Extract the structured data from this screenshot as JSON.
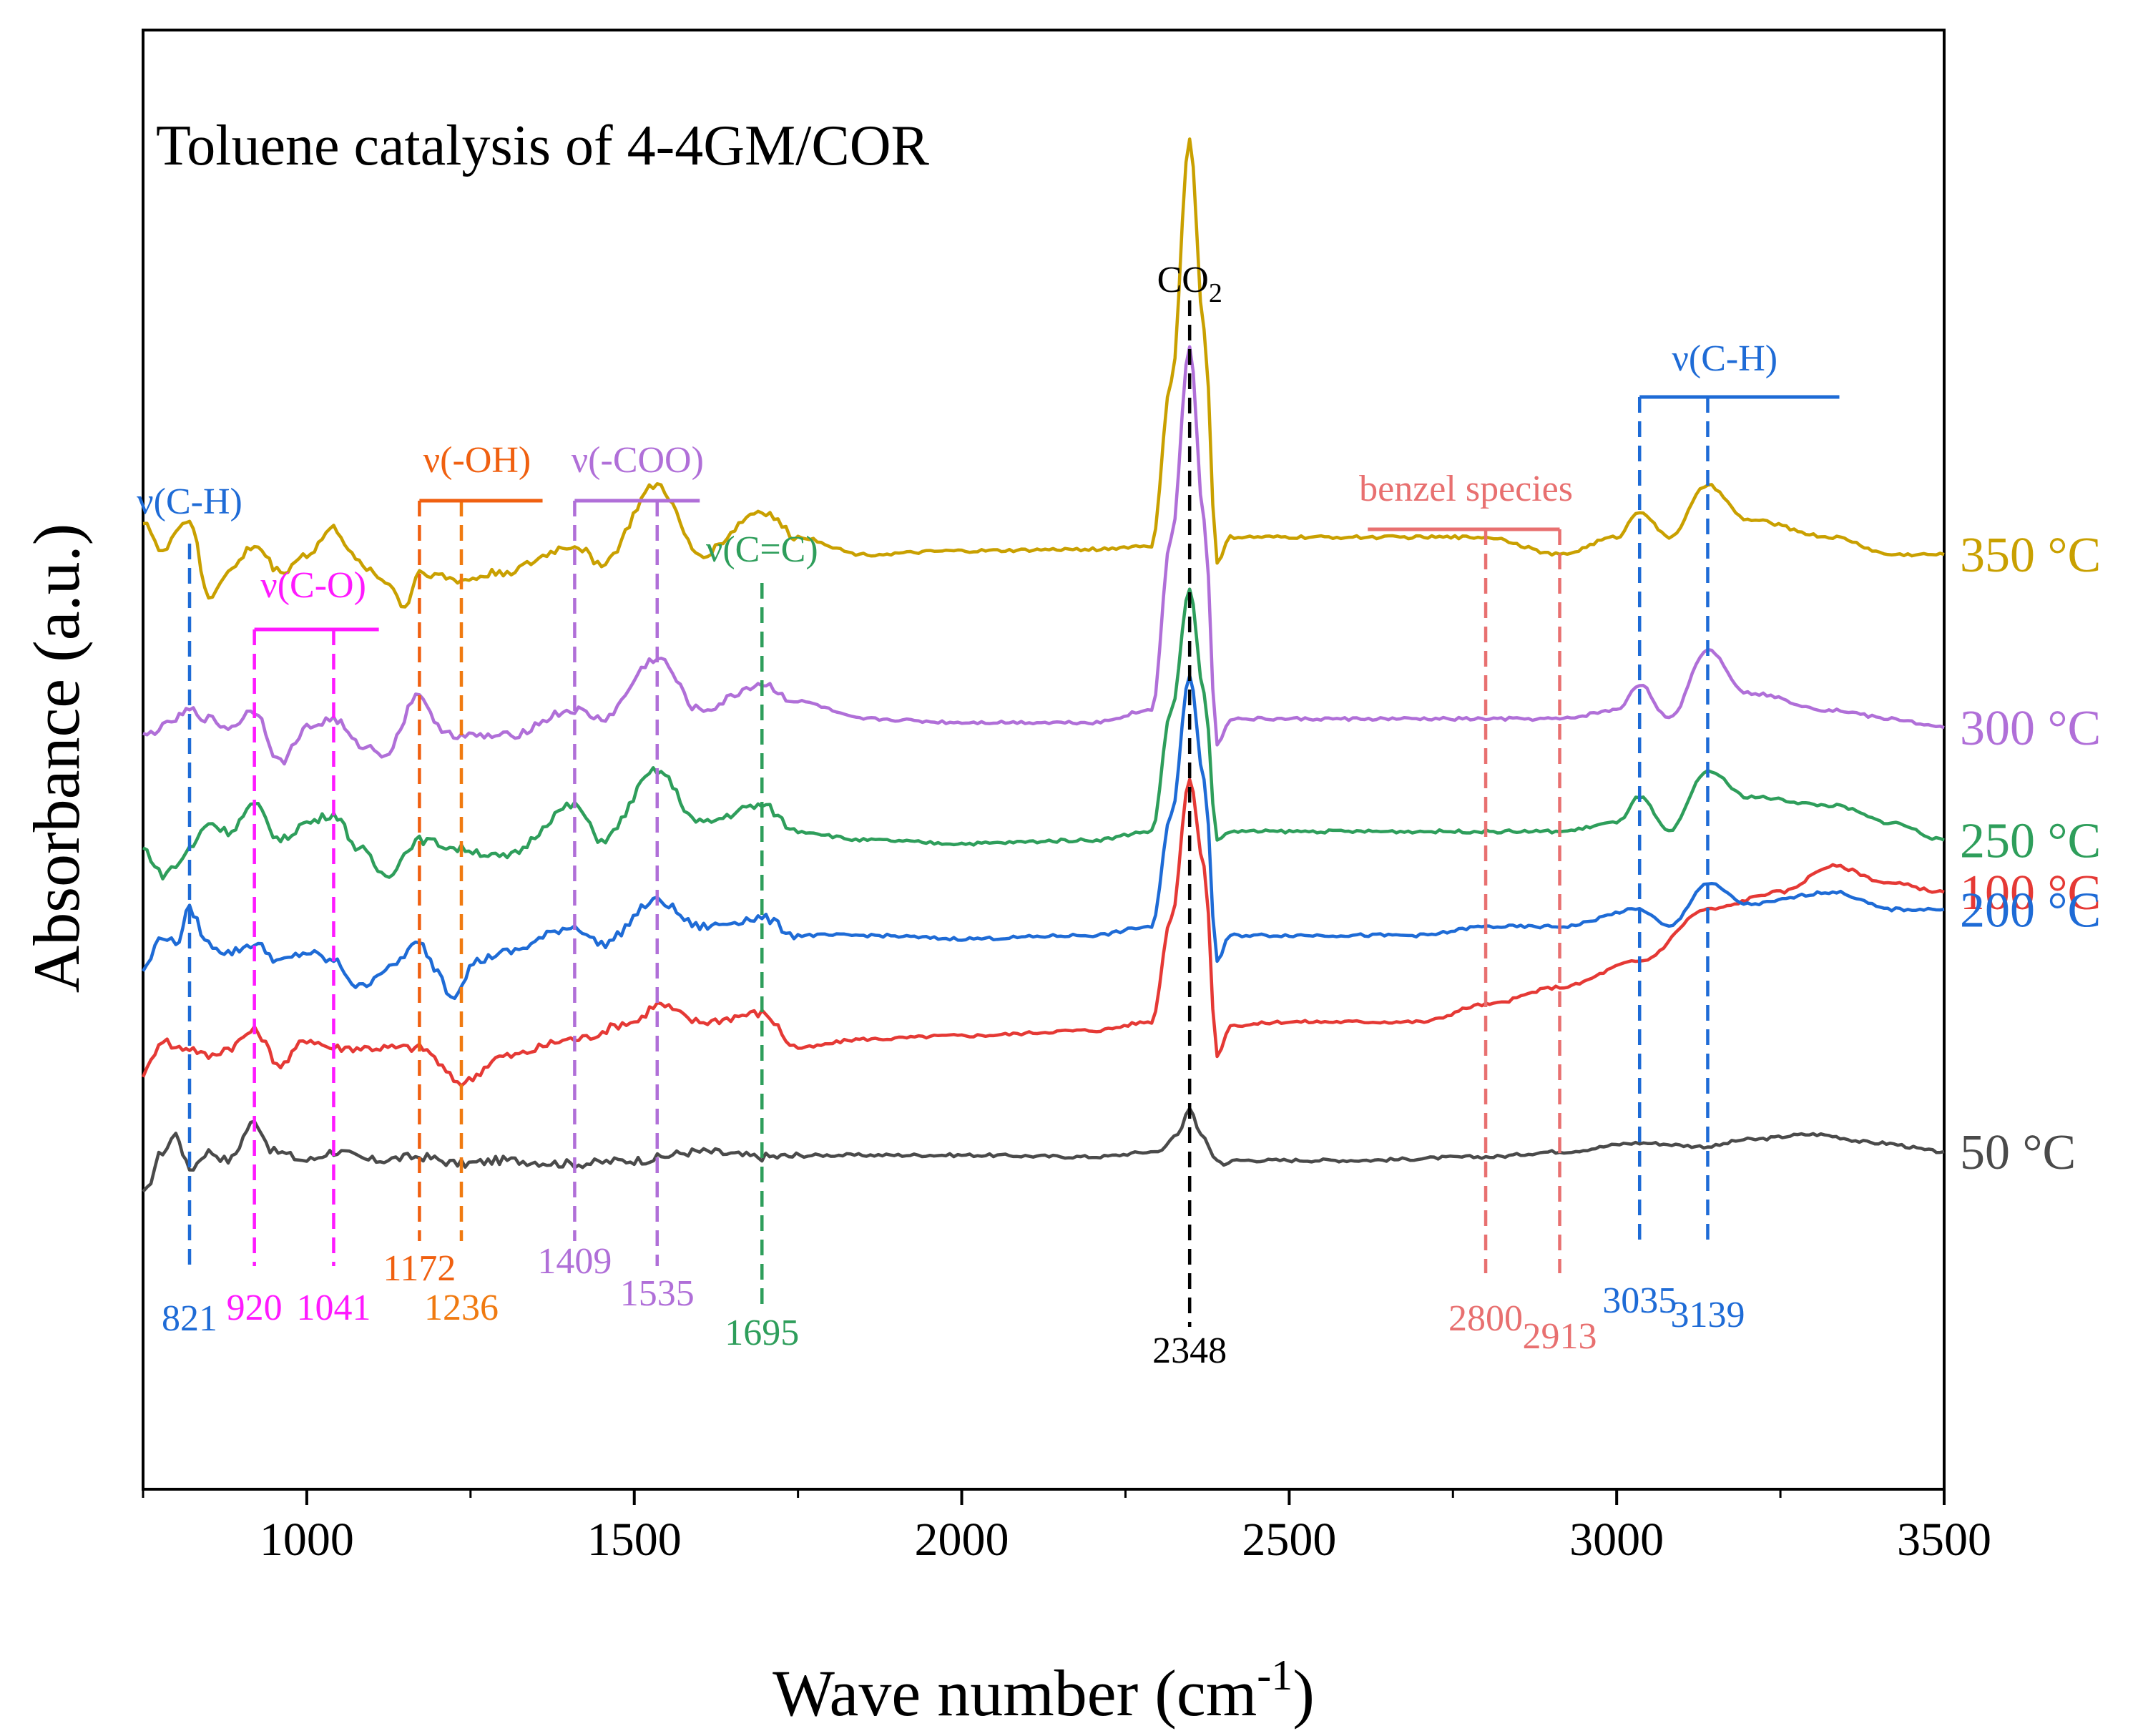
{
  "chart_data": {
    "type": "line",
    "title": "Toluene catalysis of 4-4GM/COR",
    "xlabel_main": "Wave number (cm",
    "xlabel_sup": "-1",
    "xlabel_close": ")",
    "ylabel": "Absorbance (a.u.)",
    "xlim": [
      750,
      3500
    ],
    "ylim": [
      0,
      10
    ],
    "xticks": [
      1000,
      1500,
      2000,
      2500,
      3000,
      3500
    ],
    "xtick_labels": [
      "1000",
      "1500",
      "2000",
      "2500",
      "3000",
      "3500"
    ],
    "series": [
      {
        "name": "50 °C",
        "color": "#4a4a4a",
        "baseline": 1.9,
        "points": [
          [
            750,
            1.7
          ],
          [
            780,
            1.95
          ],
          [
            800,
            2.05
          ],
          [
            821,
            1.85
          ],
          [
            850,
            1.95
          ],
          [
            880,
            1.9
          ],
          [
            920,
            2.12
          ],
          [
            950,
            1.95
          ],
          [
            1000,
            1.9
          ],
          [
            1041,
            1.95
          ],
          [
            1100,
            1.9
          ],
          [
            1172,
            1.92
          ],
          [
            1236,
            1.88
          ],
          [
            1300,
            1.9
          ],
          [
            1409,
            1.88
          ],
          [
            1500,
            1.9
          ],
          [
            1600,
            1.95
          ],
          [
            1695,
            1.92
          ],
          [
            1800,
            1.93
          ],
          [
            2000,
            1.93
          ],
          [
            2200,
            1.92
          ],
          [
            2300,
            1.95
          ],
          [
            2330,
            2.05
          ],
          [
            2348,
            2.2
          ],
          [
            2365,
            2.05
          ],
          [
            2390,
            1.9
          ],
          [
            2400,
            1.88
          ],
          [
            2420,
            1.9
          ],
          [
            2600,
            1.9
          ],
          [
            2800,
            1.92
          ],
          [
            2913,
            1.95
          ],
          [
            3035,
            2.0
          ],
          [
            3139,
            1.98
          ],
          [
            3200,
            2.02
          ],
          [
            3300,
            2.05
          ],
          [
            3400,
            2.0
          ],
          [
            3500,
            1.95
          ]
        ]
      },
      {
        "name": "100 °C",
        "color": "#e53935",
        "baseline": 2.4,
        "points": [
          [
            750,
            2.4
          ],
          [
            780,
            2.6
          ],
          [
            800,
            2.55
          ],
          [
            821,
            2.55
          ],
          [
            850,
            2.5
          ],
          [
            880,
            2.55
          ],
          [
            920,
            2.65
          ],
          [
            960,
            2.45
          ],
          [
            1000,
            2.6
          ],
          [
            1041,
            2.55
          ],
          [
            1100,
            2.55
          ],
          [
            1172,
            2.55
          ],
          [
            1236,
            2.35
          ],
          [
            1300,
            2.5
          ],
          [
            1409,
            2.6
          ],
          [
            1500,
            2.7
          ],
          [
            1535,
            2.8
          ],
          [
            1600,
            2.7
          ],
          [
            1695,
            2.75
          ],
          [
            1750,
            2.55
          ],
          [
            1850,
            2.6
          ],
          [
            2000,
            2.62
          ],
          [
            2200,
            2.65
          ],
          [
            2290,
            2.7
          ],
          [
            2320,
            3.3
          ],
          [
            2348,
            4.1
          ],
          [
            2370,
            3.6
          ],
          [
            2390,
            2.5
          ],
          [
            2410,
            2.68
          ],
          [
            2500,
            2.7
          ],
          [
            2700,
            2.7
          ],
          [
            2800,
            2.8
          ],
          [
            2913,
            2.9
          ],
          [
            3035,
            3.05
          ],
          [
            3139,
            3.35
          ],
          [
            3250,
            3.45
          ],
          [
            3330,
            3.6
          ],
          [
            3420,
            3.5
          ],
          [
            3500,
            3.45
          ]
        ]
      },
      {
        "name": "200 °C",
        "color": "#1e6bd6",
        "baseline": 3.2,
        "points": [
          [
            750,
            3.0
          ],
          [
            780,
            3.2
          ],
          [
            800,
            3.15
          ],
          [
            821,
            3.35
          ],
          [
            850,
            3.15
          ],
          [
            880,
            3.1
          ],
          [
            920,
            3.15
          ],
          [
            960,
            3.05
          ],
          [
            1000,
            3.1
          ],
          [
            1041,
            3.05
          ],
          [
            1080,
            2.9
          ],
          [
            1120,
            3.0
          ],
          [
            1172,
            3.15
          ],
          [
            1200,
            3.0
          ],
          [
            1220,
            2.85
          ],
          [
            1260,
            3.05
          ],
          [
            1300,
            3.1
          ],
          [
            1409,
            3.25
          ],
          [
            1450,
            3.15
          ],
          [
            1535,
            3.4
          ],
          [
            1600,
            3.25
          ],
          [
            1695,
            3.3
          ],
          [
            1750,
            3.2
          ],
          [
            1850,
            3.2
          ],
          [
            2000,
            3.18
          ],
          [
            2200,
            3.2
          ],
          [
            2290,
            3.25
          ],
          [
            2320,
            3.9
          ],
          [
            2348,
            4.7
          ],
          [
            2370,
            4.1
          ],
          [
            2390,
            3.05
          ],
          [
            2410,
            3.2
          ],
          [
            2500,
            3.2
          ],
          [
            2700,
            3.2
          ],
          [
            2800,
            3.25
          ],
          [
            2913,
            3.25
          ],
          [
            3035,
            3.35
          ],
          [
            3080,
            3.25
          ],
          [
            3139,
            3.5
          ],
          [
            3200,
            3.38
          ],
          [
            3330,
            3.45
          ],
          [
            3420,
            3.35
          ],
          [
            3500,
            3.35
          ]
        ]
      },
      {
        "name": "250 °C",
        "color": "#2e9e5b",
        "baseline": 3.7,
        "points": [
          [
            750,
            3.7
          ],
          [
            780,
            3.55
          ],
          [
            800,
            3.6
          ],
          [
            821,
            3.7
          ],
          [
            850,
            3.85
          ],
          [
            880,
            3.8
          ],
          [
            920,
            3.95
          ],
          [
            960,
            3.75
          ],
          [
            1000,
            3.85
          ],
          [
            1041,
            3.9
          ],
          [
            1080,
            3.7
          ],
          [
            1120,
            3.55
          ],
          [
            1172,
            3.75
          ],
          [
            1236,
            3.7
          ],
          [
            1300,
            3.65
          ],
          [
            1409,
            3.95
          ],
          [
            1450,
            3.75
          ],
          [
            1535,
            4.15
          ],
          [
            1600,
            3.85
          ],
          [
            1695,
            3.95
          ],
          [
            1750,
            3.8
          ],
          [
            1850,
            3.75
          ],
          [
            2000,
            3.73
          ],
          [
            2200,
            3.75
          ],
          [
            2290,
            3.8
          ],
          [
            2320,
            4.5
          ],
          [
            2348,
            5.2
          ],
          [
            2370,
            4.6
          ],
          [
            2390,
            3.75
          ],
          [
            2410,
            3.8
          ],
          [
            2500,
            3.8
          ],
          [
            2700,
            3.8
          ],
          [
            2800,
            3.8
          ],
          [
            2913,
            3.8
          ],
          [
            3000,
            3.85
          ],
          [
            3035,
            4.0
          ],
          [
            3080,
            3.8
          ],
          [
            3139,
            4.15
          ],
          [
            3200,
            4.0
          ],
          [
            3330,
            3.95
          ],
          [
            3420,
            3.85
          ],
          [
            3500,
            3.75
          ]
        ]
      },
      {
        "name": "300 °C",
        "color": "#b06fd8",
        "baseline": 4.4,
        "points": [
          [
            750,
            4.35
          ],
          [
            780,
            4.4
          ],
          [
            800,
            4.45
          ],
          [
            821,
            4.5
          ],
          [
            850,
            4.45
          ],
          [
            880,
            4.4
          ],
          [
            920,
            4.5
          ],
          [
            960,
            4.2
          ],
          [
            1000,
            4.4
          ],
          [
            1041,
            4.45
          ],
          [
            1080,
            4.3
          ],
          [
            1120,
            4.25
          ],
          [
            1172,
            4.6
          ],
          [
            1200,
            4.4
          ],
          [
            1236,
            4.35
          ],
          [
            1300,
            4.35
          ],
          [
            1409,
            4.5
          ],
          [
            1450,
            4.45
          ],
          [
            1535,
            4.8
          ],
          [
            1600,
            4.5
          ],
          [
            1695,
            4.65
          ],
          [
            1750,
            4.55
          ],
          [
            1850,
            4.45
          ],
          [
            2000,
            4.43
          ],
          [
            2200,
            4.43
          ],
          [
            2290,
            4.5
          ],
          [
            2320,
            5.5
          ],
          [
            2348,
            6.6
          ],
          [
            2370,
            5.6
          ],
          [
            2390,
            4.3
          ],
          [
            2410,
            4.45
          ],
          [
            2500,
            4.45
          ],
          [
            2700,
            4.45
          ],
          [
            2800,
            4.45
          ],
          [
            2913,
            4.45
          ],
          [
            3000,
            4.5
          ],
          [
            3035,
            4.65
          ],
          [
            3080,
            4.45
          ],
          [
            3139,
            4.85
          ],
          [
            3200,
            4.6
          ],
          [
            3330,
            4.5
          ],
          [
            3420,
            4.45
          ],
          [
            3500,
            4.4
          ]
        ]
      },
      {
        "name": "350 °C",
        "color": "#c9a000",
        "baseline": 5.3,
        "points": [
          [
            750,
            5.6
          ],
          [
            780,
            5.4
          ],
          [
            800,
            5.55
          ],
          [
            821,
            5.6
          ],
          [
            850,
            5.15
          ],
          [
            880,
            5.3
          ],
          [
            920,
            5.45
          ],
          [
            960,
            5.3
          ],
          [
            1000,
            5.4
          ],
          [
            1041,
            5.55
          ],
          [
            1080,
            5.35
          ],
          [
            1120,
            5.25
          ],
          [
            1150,
            5.1
          ],
          [
            1172,
            5.3
          ],
          [
            1236,
            5.25
          ],
          [
            1300,
            5.3
          ],
          [
            1409,
            5.45
          ],
          [
            1450,
            5.35
          ],
          [
            1535,
            5.8
          ],
          [
            1600,
            5.4
          ],
          [
            1695,
            5.65
          ],
          [
            1750,
            5.5
          ],
          [
            1850,
            5.4
          ],
          [
            2000,
            5.42
          ],
          [
            2200,
            5.43
          ],
          [
            2290,
            5.45
          ],
          [
            2320,
            6.4
          ],
          [
            2348,
            7.8
          ],
          [
            2370,
            6.7
          ],
          [
            2390,
            5.35
          ],
          [
            2410,
            5.5
          ],
          [
            2500,
            5.5
          ],
          [
            2700,
            5.5
          ],
          [
            2800,
            5.5
          ],
          [
            2913,
            5.4
          ],
          [
            3000,
            5.5
          ],
          [
            3035,
            5.65
          ],
          [
            3080,
            5.5
          ],
          [
            3139,
            5.8
          ],
          [
            3200,
            5.6
          ],
          [
            3330,
            5.5
          ],
          [
            3420,
            5.4
          ],
          [
            3500,
            5.4
          ]
        ]
      }
    ],
    "annotations": [
      {
        "x": 821,
        "label": "821",
        "color": "#1e6bd6"
      },
      {
        "x": 920,
        "label": "920",
        "color": "#ff19ff"
      },
      {
        "x": 1041,
        "label": "1041",
        "color": "#ff19ff"
      },
      {
        "x": 1172,
        "label": "1172",
        "color": "#f06010"
      },
      {
        "x": 1236,
        "label": "1236",
        "color": "#f07a10"
      },
      {
        "x": 1409,
        "label": "1409",
        "color": "#b06fd8"
      },
      {
        "x": 1535,
        "label": "1535",
        "color": "#b06fd8"
      },
      {
        "x": 1695,
        "label": "1695",
        "color": "#2e9e5b"
      },
      {
        "x": 2348,
        "label": "2348",
        "color": "#000000"
      },
      {
        "x": 2800,
        "label": "2800",
        "color": "#e87070"
      },
      {
        "x": 2913,
        "label": "2913",
        "color": "#e87070"
      },
      {
        "x": 3035,
        "label": "3035",
        "color": "#1e6bd6"
      },
      {
        "x": 3139,
        "label": "3139",
        "color": "#1e6bd6"
      }
    ],
    "groups": [
      {
        "label": "ν(C-H)",
        "color": "#1e6bd6"
      },
      {
        "label": "ν(C-O)",
        "color": "#ff19ff"
      },
      {
        "label": "ν(-OH)",
        "color": "#f06010"
      },
      {
        "label": "ν(-COO)",
        "color": "#b06fd8"
      },
      {
        "label": "ν(C=C)",
        "color": "#2e9e5b"
      },
      {
        "label": "benzel species",
        "color": "#e87070"
      },
      {
        "label": "ν(C-H)",
        "color": "#1e6bd6"
      }
    ],
    "co2": {
      "label_main": "CO",
      "label_sub": "2"
    }
  }
}
